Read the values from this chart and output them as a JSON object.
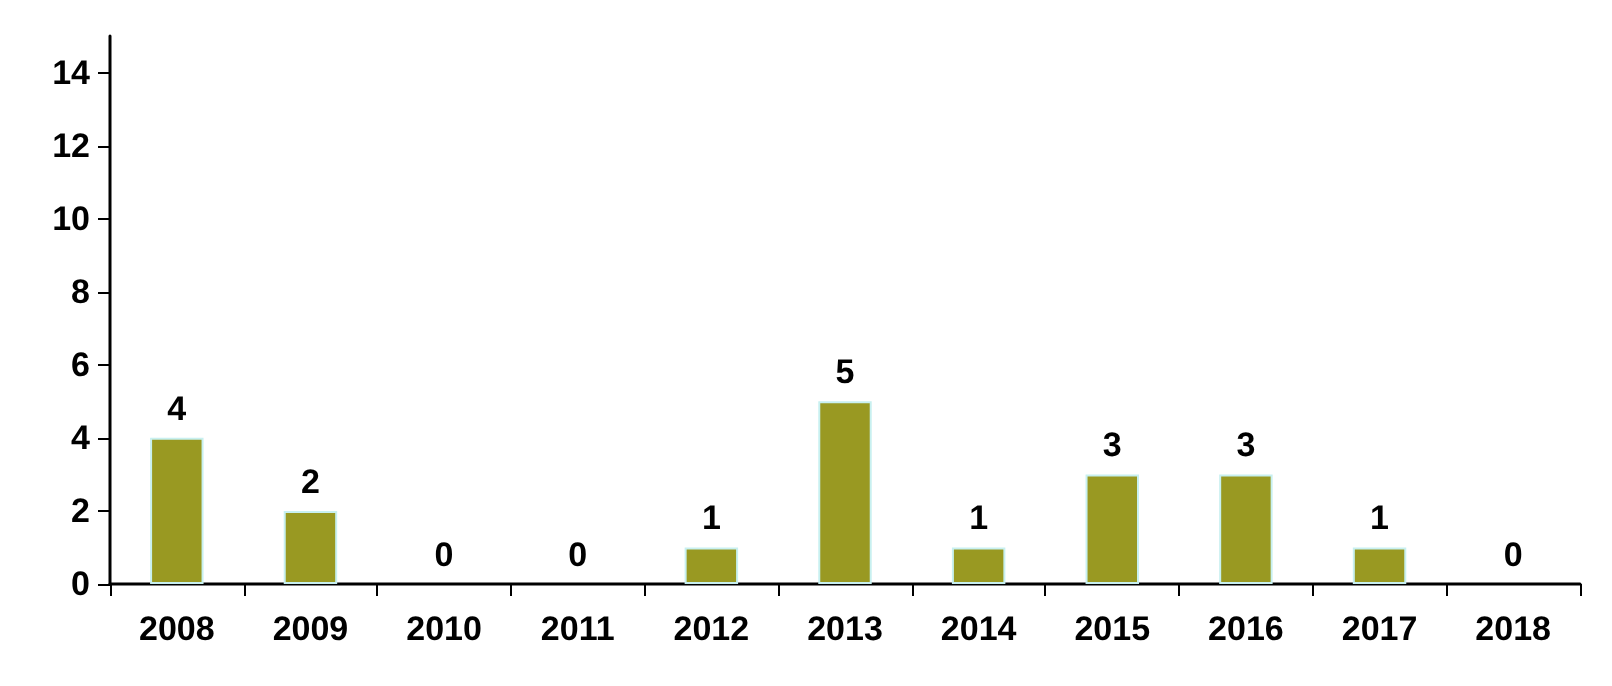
{
  "chart_data": {
    "type": "bar",
    "categories": [
      "2008",
      "2009",
      "2010",
      "2011",
      "2012",
      "2013",
      "2014",
      "2015",
      "2016",
      "2017",
      "2018"
    ],
    "values": [
      4,
      2,
      0,
      0,
      1,
      5,
      1,
      3,
      3,
      1,
      0
    ],
    "color": "#999922",
    "ylim": [
      0,
      15
    ],
    "yticks": [
      0,
      2,
      4,
      6,
      8,
      10,
      12,
      14
    ],
    "grid": false,
    "data_labels": true
  }
}
